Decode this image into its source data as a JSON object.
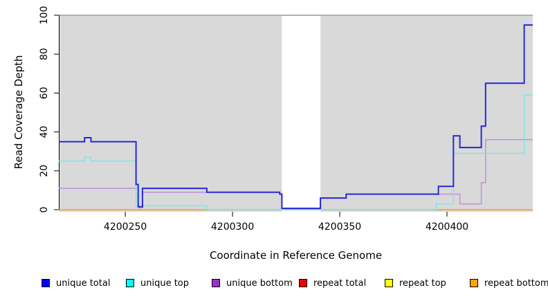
{
  "chart_data": {
    "type": "line",
    "step": true,
    "title": "",
    "xlabel": "Coordinate in Reference Genome",
    "ylabel": "Read Coverage Depth",
    "xlim": [
      4200219,
      4200440
    ],
    "ylim": [
      0,
      100
    ],
    "xticks": [
      4200250,
      4200300,
      4200350,
      4200400
    ],
    "yticks": [
      0,
      20,
      40,
      60,
      80,
      100
    ],
    "grid": false,
    "panel_bg": "#d9d9d9",
    "panel_top_border": "#8f8f8f",
    "masked_region": {
      "from": 4200323,
      "to": 4200341,
      "color": "#ffffff"
    },
    "legend_position": "bottom",
    "series": [
      {
        "name": "unique total",
        "legend_color": "#0000ee",
        "line_color": "#2727d8",
        "width": 2,
        "points": [
          [
            4200219,
            35
          ],
          [
            4200231,
            37
          ],
          [
            4200234,
            35
          ],
          [
            4200255,
            13
          ],
          [
            4200256,
            1.5
          ],
          [
            4200258,
            11
          ],
          [
            4200288,
            9
          ],
          [
            4200322,
            8
          ],
          [
            4200323,
            0.7
          ],
          [
            4200341,
            6
          ],
          [
            4200353,
            8
          ],
          [
            4200396,
            12
          ],
          [
            4200403,
            38
          ],
          [
            4200406,
            32
          ],
          [
            4200416,
            43
          ],
          [
            4200418,
            65
          ],
          [
            4200436,
            95
          ]
        ]
      },
      {
        "name": "unique top",
        "legend_color": "#00ffff",
        "line_color": "#7de7e7",
        "width": 1.5,
        "points": [
          [
            4200219,
            25
          ],
          [
            4200231,
            27
          ],
          [
            4200234,
            25
          ],
          [
            4200255,
            2
          ],
          [
            4200288,
            0
          ],
          [
            4200395,
            3
          ],
          [
            4200403,
            29
          ],
          [
            4200436,
            59
          ]
        ]
      },
      {
        "name": "unique bottom",
        "legend_color": "#9932cc",
        "line_color": "#c08fdc",
        "width": 1.5,
        "points": [
          [
            4200219,
            11
          ],
          [
            4200256,
            1
          ],
          [
            4200258,
            9
          ],
          [
            4200322,
            8
          ],
          [
            4200323,
            0.4
          ],
          [
            4200341,
            6
          ],
          [
            4200353,
            8
          ],
          [
            4200406,
            3
          ],
          [
            4200416,
            14
          ],
          [
            4200418,
            36
          ]
        ]
      },
      {
        "name": "repeat total",
        "legend_color": "#ee0000",
        "line_color": "#d84c4c",
        "width": 1.5,
        "points": [
          [
            4200219,
            0
          ]
        ]
      },
      {
        "name": "repeat top",
        "legend_color": "#ffff00",
        "line_color": "#eaea70",
        "width": 1.5,
        "points": [
          [
            4200219,
            0
          ]
        ]
      },
      {
        "name": "repeat bottom",
        "legend_color": "#ffa500",
        "line_color": "#ffa519",
        "width": 1.5,
        "points": [
          [
            4200219,
            0
          ]
        ]
      }
    ],
    "overlay_segments": [
      {
        "name": "unique-top-repeat-blend",
        "from": 4200288,
        "to": 4200396,
        "value": 0,
        "color": "#7fcd7f",
        "width": 1.5
      }
    ]
  }
}
